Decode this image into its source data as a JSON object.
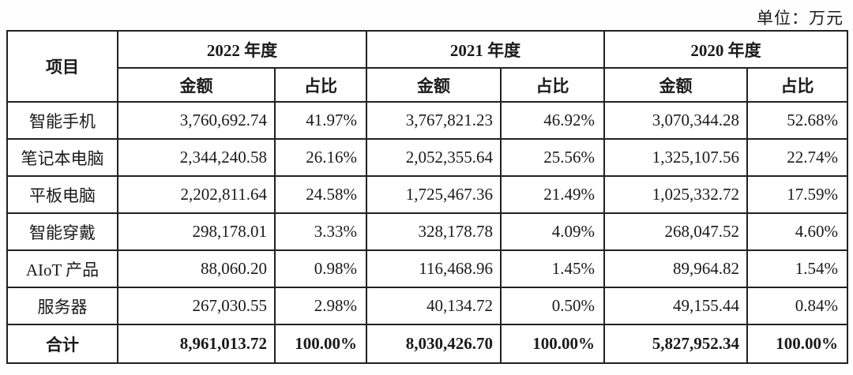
{
  "unit_label": "单位：万元",
  "table": {
    "item_header": "项目",
    "year_groups": [
      "2022 年度",
      "2021 年度",
      "2020 年度"
    ],
    "sub_headers": {
      "amount": "金额",
      "ratio": "占比"
    },
    "rows": [
      {
        "item": "智能手机",
        "cells": [
          "3,760,692.74",
          "41.97%",
          "3,767,821.23",
          "46.92%",
          "3,070,344.28",
          "52.68%"
        ]
      },
      {
        "item": "笔记本电脑",
        "cells": [
          "2,344,240.58",
          "26.16%",
          "2,052,355.64",
          "25.56%",
          "1,325,107.56",
          "22.74%"
        ]
      },
      {
        "item": "平板电脑",
        "cells": [
          "2,202,811.64",
          "24.58%",
          "1,725,467.36",
          "21.49%",
          "1,025,332.72",
          "17.59%"
        ]
      },
      {
        "item": "智能穿戴",
        "cells": [
          "298,178.01",
          "3.33%",
          "328,178.78",
          "4.09%",
          "268,047.52",
          "4.60%"
        ]
      },
      {
        "item": "AIoT 产品",
        "cells": [
          "88,060.20",
          "0.98%",
          "116,468.96",
          "1.45%",
          "89,964.82",
          "1.54%"
        ]
      },
      {
        "item": "服务器",
        "cells": [
          "267,030.55",
          "2.98%",
          "40,134.72",
          "0.50%",
          "49,155.44",
          "0.84%"
        ]
      }
    ],
    "total": {
      "item": "合计",
      "cells": [
        "8,961,013.72",
        "100.00%",
        "8,030,426.70",
        "100.00%",
        "5,827,952.34",
        "100.00%"
      ]
    }
  },
  "colors": {
    "text": "#1a1a1a",
    "border": "#212121",
    "background": "#ffffff"
  }
}
